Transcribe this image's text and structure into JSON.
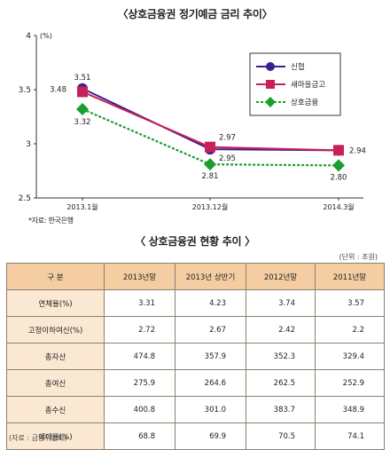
{
  "chart_title": "〈상호금융권 정기예금 금리 추이〉",
  "chart_data": {
    "type": "line",
    "title": "〈상호금융권 정기예금 금리 추이〉",
    "ylabel": "(%)",
    "ylim": [
      2.5,
      4
    ],
    "y_ticks": [
      "2.5",
      "3",
      "3.5",
      "4"
    ],
    "categories": [
      "2013.1월",
      "2013.12월",
      "2014.3월"
    ],
    "series": [
      {
        "name": "신협",
        "color": "#3d1f8f",
        "marker": "circle",
        "dash": false,
        "values": [
          3.51,
          2.95,
          2.94
        ],
        "labels": [
          "3.51",
          "2.95",
          "2.94"
        ]
      },
      {
        "name": "새마을금고",
        "color": "#c8205a",
        "marker": "square",
        "dash": false,
        "values": [
          3.48,
          2.97,
          2.94
        ],
        "labels": [
          "3.48",
          "2.97",
          ""
        ]
      },
      {
        "name": "상호금융",
        "color": "#1a9e2e",
        "marker": "diamond",
        "dash": true,
        "values": [
          3.32,
          2.81,
          2.8
        ],
        "labels": [
          "3.32",
          "2.81",
          "2.80"
        ]
      }
    ],
    "legend_position": "top-right",
    "grid": false
  },
  "chart_source": "*자료: 한국은행",
  "table": {
    "title": "〈 상호금융권 현황 추이 〉",
    "unit": "(단위 : 조원)",
    "header": [
      "구  분",
      "2013년말",
      "2013년 상반기",
      "2012년말",
      "2011년말"
    ],
    "rows": [
      {
        "label": "연체율(%)",
        "values": [
          "3.31",
          "4.23",
          "3.74",
          "3.57"
        ]
      },
      {
        "label": "고정이하여신(%)",
        "values": [
          "2.72",
          "2.67",
          "2.42",
          "2.2"
        ]
      },
      {
        "label": "총자산",
        "values": [
          "474.8",
          "357.9",
          "352.3",
          "329.4"
        ]
      },
      {
        "label": "총여신",
        "values": [
          "275.9",
          "264.6",
          "262.5",
          "252.9"
        ]
      },
      {
        "label": "총수신",
        "values": [
          "400.8",
          "301.0",
          "383.7",
          "348.9"
        ]
      },
      {
        "label": "예대율(%)",
        "values": [
          "68.8",
          "69.9",
          "70.5",
          "74.1"
        ]
      }
    ],
    "source": "(자료 : 금융위원회)"
  }
}
